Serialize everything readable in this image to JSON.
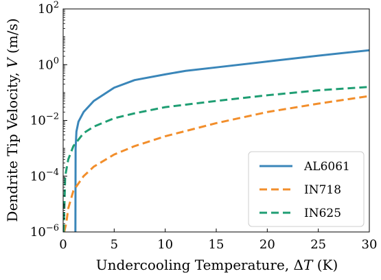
{
  "chart_data": {
    "type": "line",
    "title": "",
    "xlabel": "Undercooling Temperature, ΔT (K)",
    "ylabel": "Dendrite Tip Velocity, V (m/s)",
    "xlim": [
      0,
      30
    ],
    "ylim": [
      1e-06,
      100
    ],
    "yscale": "log",
    "grid": false,
    "legend_position": "lower-right",
    "x_ticks": [
      "0",
      "5",
      "10",
      "15",
      "20",
      "25",
      "30"
    ],
    "y_ticks": [
      {
        "base": "10",
        "exp": "−6"
      },
      {
        "base": "10",
        "exp": "−4"
      },
      {
        "base": "10",
        "exp": "−2"
      },
      {
        "base": "10",
        "exp": "0"
      },
      {
        "base": "10",
        "exp": "2"
      }
    ],
    "series": [
      {
        "name": "AL6061",
        "color": "#3a86b9",
        "style": "solid",
        "points": [
          [
            1.2,
            1e-06
          ],
          [
            1.22,
            0.001
          ],
          [
            1.3,
            0.004
          ],
          [
            1.5,
            0.009
          ],
          [
            2,
            0.02
          ],
          [
            3,
            0.05
          ],
          [
            5,
            0.15
          ],
          [
            7,
            0.28
          ],
          [
            10,
            0.45
          ],
          [
            12,
            0.6
          ],
          [
            15,
            0.8
          ],
          [
            20,
            1.3
          ],
          [
            25,
            2.1
          ],
          [
            30,
            3.3
          ]
        ]
      },
      {
        "name": "IN718",
        "color": "#f28e2b",
        "style": "dashed",
        "points": [
          [
            0.1,
            1e-06
          ],
          [
            0.3,
            2e-06
          ],
          [
            0.5,
            7e-06
          ],
          [
            1,
            3e-05
          ],
          [
            2,
            0.0001
          ],
          [
            3,
            0.00022
          ],
          [
            5,
            0.0006
          ],
          [
            7,
            0.0012
          ],
          [
            10,
            0.0027
          ],
          [
            15,
            0.008
          ],
          [
            20,
            0.02
          ],
          [
            25,
            0.04
          ],
          [
            30,
            0.075
          ]
        ]
      },
      {
        "name": "IN625",
        "color": "#1f9e73",
        "style": "dashed",
        "points": [
          [
            0.05,
            1e-06
          ],
          [
            0.2,
            0.0001
          ],
          [
            0.5,
            0.0004
          ],
          [
            1,
            0.0012
          ],
          [
            2,
            0.0035
          ],
          [
            3,
            0.006
          ],
          [
            5,
            0.012
          ],
          [
            7,
            0.018
          ],
          [
            10,
            0.03
          ],
          [
            15,
            0.05
          ],
          [
            20,
            0.08
          ],
          [
            25,
            0.12
          ],
          [
            30,
            0.16
          ]
        ]
      }
    ]
  }
}
